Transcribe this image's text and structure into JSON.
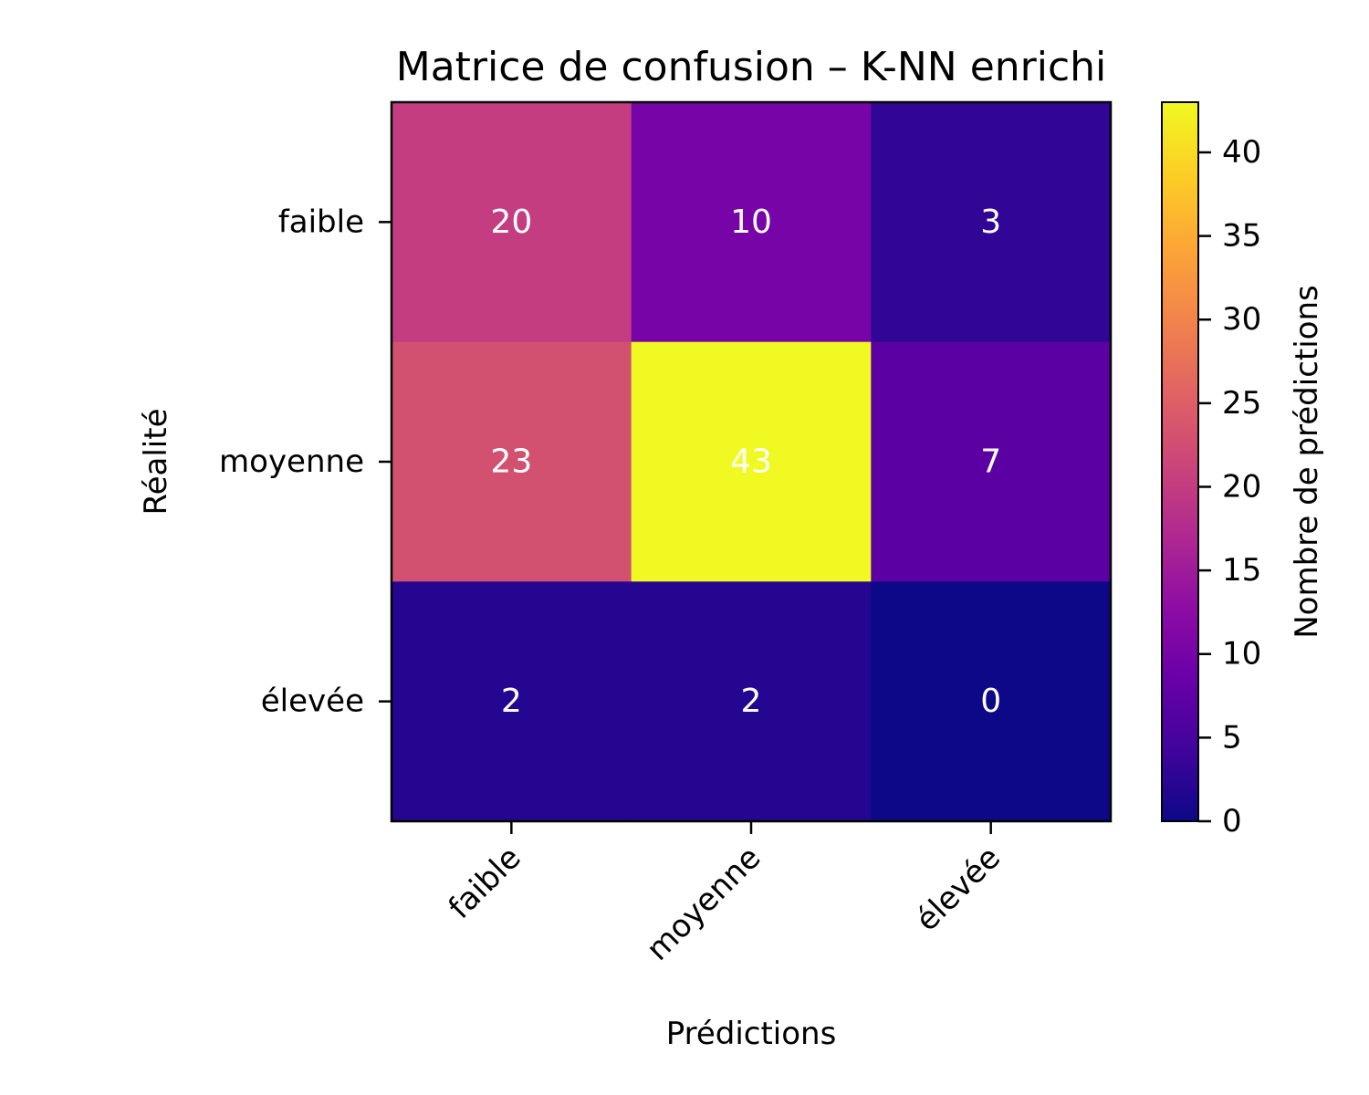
{
  "chart_data": {
    "type": "heatmap",
    "title": "Matrice de confusion – K-NN enrichi",
    "xlabel": "Prédictions",
    "ylabel": "Réalité",
    "x_categories": [
      "faible",
      "moyenne",
      "élevée"
    ],
    "y_categories": [
      "faible",
      "moyenne",
      "élevée"
    ],
    "values": [
      [
        20,
        10,
        3
      ],
      [
        23,
        43,
        7
      ],
      [
        2,
        2,
        0
      ]
    ],
    "colormap": "plasma",
    "colorbar": {
      "label": "Nombre de prédictions",
      "range": [
        0,
        43
      ],
      "ticks": [
        0,
        5,
        10,
        15,
        20,
        25,
        30,
        35,
        40
      ]
    },
    "colors": {
      "cell_text": "#ffffff",
      "axis": "#000000"
    }
  }
}
